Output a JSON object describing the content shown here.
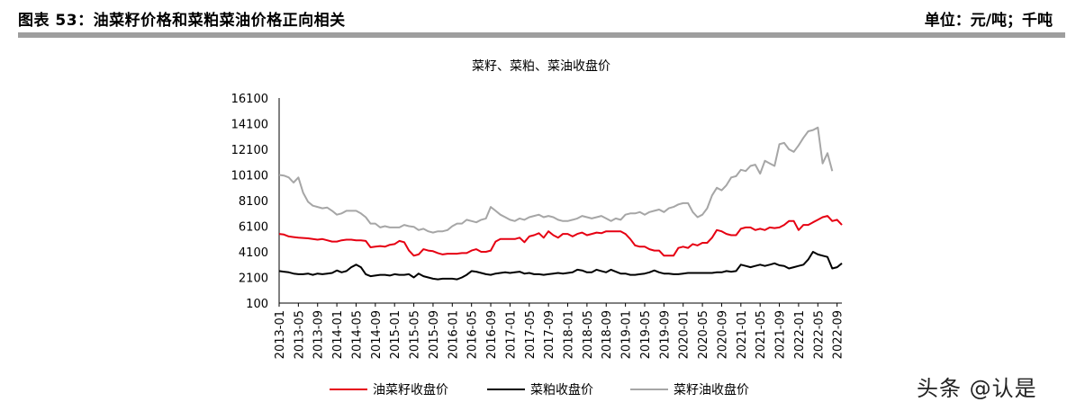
{
  "header": {
    "figure_title": "图表 53：油菜籽价格和菜粕菜油价格正向相关",
    "unit": "单位：元/吨；千吨"
  },
  "watermark": "头条 @认是",
  "chart_data": {
    "type": "line",
    "title": "菜籽、菜粕、菜油收盘价",
    "xlabel": "",
    "ylabel": "",
    "ylim": [
      100,
      16100
    ],
    "yticks": [
      100,
      2100,
      4100,
      6100,
      8100,
      10100,
      12100,
      14100,
      16100
    ],
    "grid": false,
    "legend_position": "bottom",
    "x_start": "2013-01",
    "x_labels": [
      "2013-01",
      "2013-05",
      "2013-09",
      "2014-01",
      "2014-05",
      "2014-09",
      "2015-01",
      "2015-05",
      "2015-09",
      "2016-01",
      "2016-05",
      "2016-09",
      "2017-01",
      "2017-05",
      "2017-09",
      "2018-01",
      "2018-05",
      "2018-09",
      "2019-01",
      "2019-05",
      "2019-09",
      "2020-01",
      "2020-05",
      "2020-09",
      "2021-01",
      "2021-05",
      "2021-09",
      "2022-01",
      "2022-05",
      "2022-09"
    ],
    "series": [
      {
        "name": "油菜籽收盘价",
        "color": "#e60012",
        "values": [
          5500,
          5450,
          5300,
          5250,
          5200,
          5180,
          5150,
          5100,
          5050,
          5100,
          5000,
          4900,
          4900,
          5000,
          5050,
          5050,
          5000,
          5000,
          4950,
          4450,
          4500,
          4550,
          4500,
          4650,
          4700,
          4950,
          4850,
          4200,
          3800,
          3900,
          4300,
          4200,
          4150,
          4000,
          3900,
          3950,
          3950,
          3950,
          4000,
          4000,
          4200,
          4300,
          4100,
          4100,
          4200,
          4900,
          5100,
          5100,
          5100,
          5100,
          5200,
          4850,
          5300,
          5400,
          5550,
          5200,
          5700,
          5400,
          5200,
          5500,
          5500,
          5300,
          5500,
          5600,
          5400,
          5500,
          5600,
          5550,
          5700,
          5700,
          5700,
          5700,
          5500,
          5100,
          4600,
          4500,
          4500,
          4300,
          4200,
          4200,
          3800,
          3800,
          3800,
          4400,
          4500,
          4400,
          4700,
          4600,
          4800,
          4800,
          5200,
          5800,
          5700,
          5500,
          5400,
          5400,
          5900,
          6000,
          6000,
          5800,
          5900,
          5800,
          6000,
          5950,
          6000,
          6200,
          6500,
          6500,
          5800,
          6200,
          6200,
          6400,
          6600,
          6800,
          6900,
          6500,
          6600,
          6200
        ]
      },
      {
        "name": "菜粕收盘价",
        "color": "#000000",
        "values": [
          2600,
          2550,
          2500,
          2400,
          2350,
          2350,
          2400,
          2300,
          2400,
          2350,
          2400,
          2450,
          2650,
          2500,
          2600,
          2900,
          3100,
          2900,
          2350,
          2200,
          2250,
          2300,
          2300,
          2250,
          2350,
          2300,
          2300,
          2350,
          2100,
          2400,
          2200,
          2100,
          2000,
          1950,
          2000,
          2000,
          2000,
          1950,
          2100,
          2300,
          2600,
          2550,
          2450,
          2350,
          2300,
          2400,
          2450,
          2500,
          2450,
          2500,
          2550,
          2400,
          2450,
          2350,
          2350,
          2300,
          2350,
          2400,
          2450,
          2400,
          2450,
          2500,
          2700,
          2650,
          2500,
          2500,
          2700,
          2600,
          2500,
          2700,
          2550,
          2400,
          2400,
          2300,
          2300,
          2350,
          2400,
          2500,
          2650,
          2500,
          2400,
          2400,
          2350,
          2350,
          2400,
          2450,
          2450,
          2450,
          2450,
          2450,
          2450,
          2500,
          2500,
          2600,
          2550,
          2600,
          3100,
          3000,
          2900,
          3000,
          3100,
          3000,
          3100,
          3200,
          3050,
          3000,
          2800,
          2900,
          3000,
          3100,
          3500,
          4100,
          3900,
          3800,
          3700,
          2800,
          2900,
          3200
        ]
      },
      {
        "name": "菜籽油收盘价",
        "color": "#a6a6a6",
        "values": [
          10100,
          10050,
          9900,
          9500,
          9900,
          8700,
          8000,
          7700,
          7600,
          7500,
          7550,
          7300,
          7000,
          7100,
          7300,
          7300,
          7300,
          7100,
          6800,
          6300,
          6300,
          6000,
          6100,
          6000,
          6000,
          6000,
          6200,
          6100,
          6050,
          5800,
          5900,
          5700,
          5600,
          5700,
          5700,
          5800,
          6100,
          6300,
          6300,
          6600,
          6500,
          6400,
          6600,
          6700,
          7600,
          7300,
          7000,
          6800,
          6600,
          6500,
          6700,
          6600,
          6800,
          6900,
          7000,
          6800,
          6900,
          6800,
          6600,
          6500,
          6500,
          6600,
          6700,
          6900,
          6800,
          6700,
          6800,
          6900,
          6700,
          6500,
          6700,
          6600,
          7000,
          7100,
          7100,
          7200,
          7000,
          7200,
          7300,
          7400,
          7200,
          7500,
          7600,
          7800,
          7900,
          7900,
          7200,
          6800,
          7000,
          7500,
          8500,
          9100,
          8900,
          9300,
          9900,
          10000,
          10500,
          10400,
          10800,
          10900,
          10200,
          11200,
          11000,
          10800,
          12500,
          12600,
          12100,
          11900,
          12400,
          13000,
          13500,
          13600,
          13800,
          11000,
          11800,
          10400
        ]
      }
    ]
  }
}
